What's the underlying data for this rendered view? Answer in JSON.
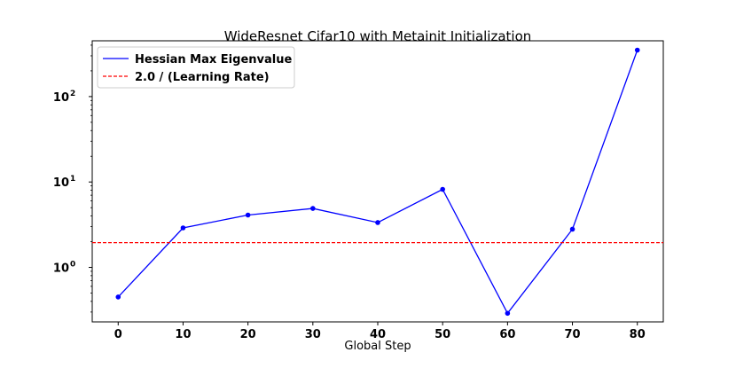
{
  "chart_data": {
    "type": "line",
    "title": "WideResnet Cifar10 with Metainit Initialization",
    "xlabel": "Global Step",
    "ylabel": "",
    "yscale": "log",
    "xlim": [
      -4,
      84
    ],
    "ylim": [
      0.23,
      450
    ],
    "x_ticks": [
      0,
      10,
      20,
      30,
      40,
      50,
      60,
      70,
      80
    ],
    "y_ticks": [
      {
        "value": 1,
        "base": "10",
        "exp": "0"
      },
      {
        "value": 10,
        "base": "10",
        "exp": "1"
      },
      {
        "value": 100,
        "base": "10",
        "exp": "2"
      }
    ],
    "grid": false,
    "legend_position": "top-left",
    "series": [
      {
        "name": "Hessian Max Eigenvalue",
        "color": "#0000ff",
        "style": "solid",
        "markers": true,
        "x": [
          0,
          10,
          20,
          30,
          40,
          50,
          60,
          70,
          80
        ],
        "y": [
          0.45,
          2.9,
          4.1,
          4.9,
          3.35,
          8.2,
          0.29,
          2.8,
          350
        ]
      },
      {
        "name": "2.0 / (Learning Rate)",
        "color": "#ff0000",
        "style": "dashed",
        "markers": false,
        "constant": 1.95
      }
    ]
  }
}
